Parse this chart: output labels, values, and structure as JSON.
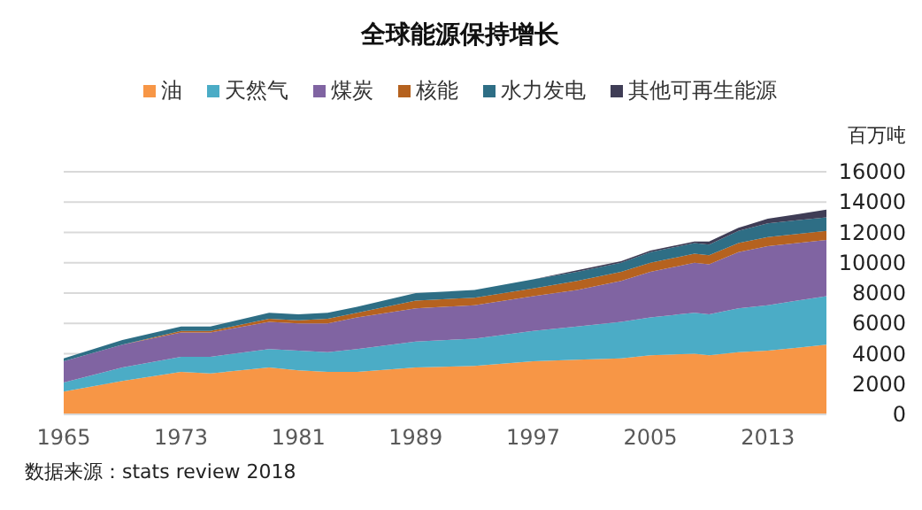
{
  "chart_data": {
    "type": "area",
    "stacked": true,
    "title": "全球能源保持增长",
    "ylabel": "百万吨",
    "legend": "top",
    "grid": "y",
    "x": [
      1965,
      1969,
      1973,
      1975,
      1979,
      1981,
      1983,
      1985,
      1989,
      1993,
      1997,
      2000,
      2003,
      2005,
      2008,
      2009,
      2011,
      2013,
      2015,
      2017
    ],
    "xlim": [
      1965,
      2017
    ],
    "xticks": [
      1965,
      1973,
      1981,
      1989,
      1997,
      2005,
      2013
    ],
    "ylim": [
      0,
      16000
    ],
    "yticks": [
      0,
      2000,
      4000,
      6000,
      8000,
      10000,
      12000,
      14000,
      16000
    ],
    "series": [
      {
        "name": "油",
        "color": "#f79646",
        "values": [
          1500,
          2200,
          2800,
          2700,
          3100,
          2900,
          2800,
          2800,
          3100,
          3200,
          3500,
          3600,
          3700,
          3900,
          4000,
          3900,
          4100,
          4200,
          4400,
          4600
        ]
      },
      {
        "name": "天然气",
        "color": "#4bacc6",
        "values": [
          600,
          900,
          1000,
          1100,
          1200,
          1300,
          1300,
          1500,
          1700,
          1800,
          2000,
          2200,
          2400,
          2500,
          2700,
          2700,
          2900,
          3000,
          3100,
          3200
        ]
      },
      {
        "name": "煤炭",
        "color": "#8064a2",
        "values": [
          1400,
          1500,
          1600,
          1600,
          1800,
          1800,
          1900,
          2100,
          2200,
          2200,
          2300,
          2400,
          2700,
          3000,
          3300,
          3300,
          3700,
          3900,
          3800,
          3700
        ]
      },
      {
        "name": "核能",
        "color": "#b5621f",
        "values": [
          0,
          0,
          100,
          100,
          200,
          200,
          300,
          300,
          500,
          500,
          500,
          600,
          600,
          600,
          600,
          600,
          600,
          600,
          600,
          600
        ]
      },
      {
        "name": "水力发电",
        "color": "#2e6e85",
        "values": [
          200,
          300,
          300,
          300,
          400,
          400,
          400,
          400,
          500,
          500,
          600,
          600,
          600,
          700,
          700,
          700,
          800,
          900,
          900,
          900
        ]
      },
      {
        "name": "其他可再生能源",
        "color": "#3f3d56",
        "values": [
          0,
          0,
          0,
          0,
          0,
          0,
          0,
          0,
          0,
          0,
          0,
          100,
          100,
          100,
          100,
          200,
          200,
          300,
          400,
          500
        ]
      }
    ],
    "annotations": [
      "数据来源：stats review 2018"
    ]
  }
}
